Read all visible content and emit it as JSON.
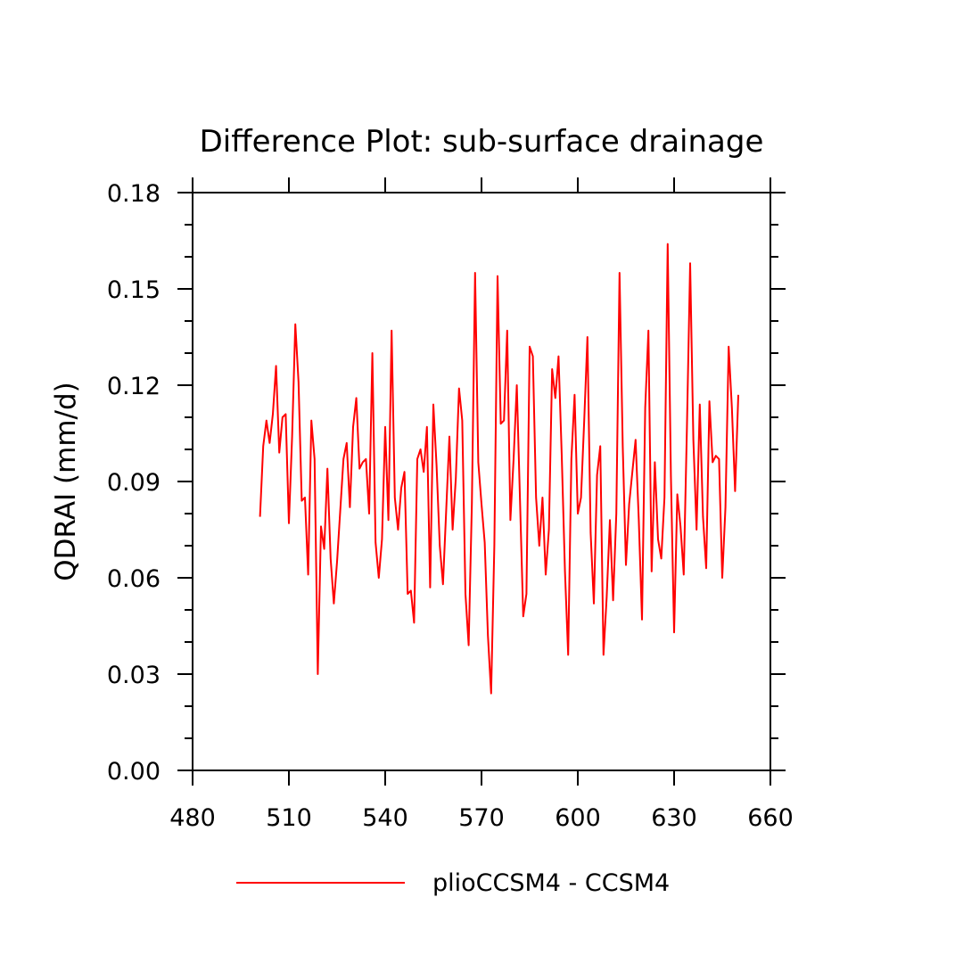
{
  "chart_data": {
    "type": "line",
    "title": "Difference Plot: sub-surface drainage",
    "xlabel": "",
    "ylabel": "QDRAI   (mm/d)",
    "xlim": [
      480,
      660
    ],
    "ylim": [
      0,
      0.18
    ],
    "x_ticks": [
      "480",
      "510",
      "540",
      "570",
      "600",
      "630",
      "660"
    ],
    "y_ticks": [
      "0.00",
      "0.03",
      "0.06",
      "0.09",
      "0.12",
      "0.15",
      "0.18"
    ],
    "grid": false,
    "legend_position": "bottom",
    "series": [
      {
        "name": "plioCCSM4 - CCSM4",
        "color": "#ff0000",
        "x": [
          501,
          502,
          503,
          504,
          505,
          506,
          507,
          508,
          509,
          510,
          511,
          512,
          513,
          514,
          515,
          516,
          517,
          518,
          519,
          520,
          521,
          522,
          523,
          524,
          525,
          526,
          527,
          528,
          529,
          530,
          531,
          532,
          533,
          534,
          535,
          536,
          537,
          538,
          539,
          540,
          541,
          542,
          543,
          544,
          545,
          546,
          547,
          548,
          549,
          550,
          551,
          552,
          553,
          554,
          555,
          556,
          557,
          558,
          559,
          560,
          561,
          562,
          563,
          564,
          565,
          566,
          567,
          568,
          569,
          570,
          571,
          572,
          573,
          574,
          575,
          576,
          577,
          578,
          579,
          580,
          581,
          582,
          583,
          584,
          585,
          586,
          587,
          588,
          589,
          590,
          591,
          592,
          593,
          594,
          595,
          596,
          597,
          598,
          599,
          600,
          601,
          602,
          603,
          604,
          605,
          606,
          607,
          608,
          609,
          610,
          611,
          612,
          613,
          614,
          615,
          616,
          617,
          618,
          619,
          620,
          621,
          622,
          623,
          624,
          625,
          626,
          627,
          628,
          629,
          630,
          631,
          632,
          633,
          634,
          635,
          636,
          637,
          638,
          639,
          640,
          641,
          642,
          643,
          644,
          645,
          646,
          647,
          648,
          649,
          650
        ],
        "y": [
          0.079,
          0.101,
          0.109,
          0.102,
          0.111,
          0.126,
          0.099,
          0.11,
          0.111,
          0.077,
          0.104,
          0.139,
          0.121,
          0.084,
          0.085,
          0.061,
          0.109,
          0.097,
          0.03,
          0.076,
          0.069,
          0.094,
          0.066,
          0.052,
          0.065,
          0.081,
          0.097,
          0.102,
          0.082,
          0.107,
          0.116,
          0.094,
          0.096,
          0.097,
          0.08,
          0.13,
          0.071,
          0.06,
          0.072,
          0.107,
          0.078,
          0.137,
          0.085,
          0.075,
          0.088,
          0.093,
          0.055,
          0.056,
          0.046,
          0.097,
          0.1,
          0.093,
          0.107,
          0.057,
          0.114,
          0.095,
          0.07,
          0.058,
          0.081,
          0.104,
          0.075,
          0.091,
          0.119,
          0.109,
          0.055,
          0.039,
          0.083,
          0.155,
          0.096,
          0.083,
          0.071,
          0.042,
          0.024,
          0.07,
          0.154,
          0.108,
          0.109,
          0.137,
          0.078,
          0.097,
          0.12,
          0.084,
          0.048,
          0.055,
          0.132,
          0.129,
          0.085,
          0.07,
          0.085,
          0.061,
          0.075,
          0.125,
          0.116,
          0.129,
          0.098,
          0.062,
          0.036,
          0.097,
          0.117,
          0.08,
          0.085,
          0.109,
          0.135,
          0.074,
          0.052,
          0.092,
          0.101,
          0.036,
          0.054,
          0.078,
          0.053,
          0.08,
          0.155,
          0.101,
          0.064,
          0.083,
          0.093,
          0.103,
          0.078,
          0.047,
          0.113,
          0.137,
          0.062,
          0.096,
          0.072,
          0.066,
          0.085,
          0.164,
          0.092,
          0.043,
          0.086,
          0.076,
          0.061,
          0.107,
          0.158,
          0.103,
          0.075,
          0.114,
          0.079,
          0.063,
          0.115,
          0.096,
          0.098,
          0.097,
          0.06,
          0.082,
          0.132,
          0.113,
          0.087,
          0.117
        ]
      }
    ]
  }
}
